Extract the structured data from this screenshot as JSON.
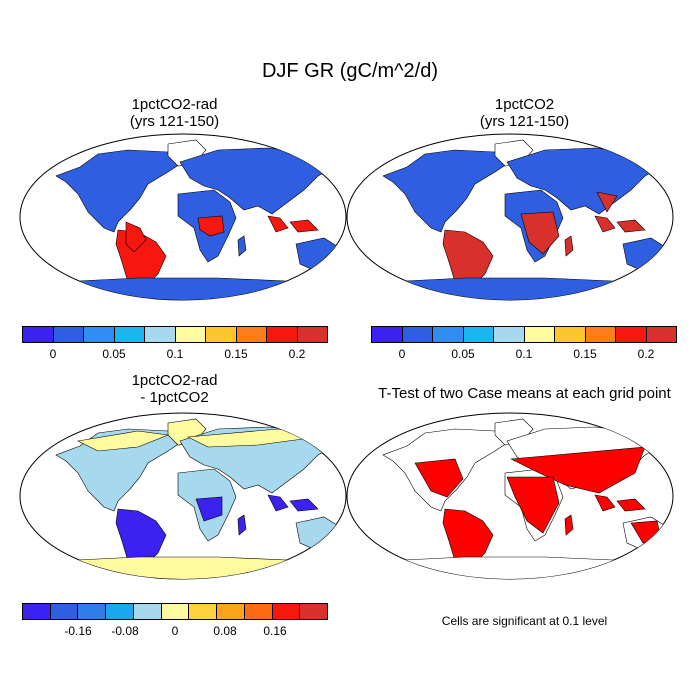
{
  "title": "DJF GR (gC/m^2/d)",
  "panels": {
    "top_left": {
      "title_line1": "1pctCO2-rad",
      "title_line2": "(yrs 121-150)"
    },
    "top_right": {
      "title_line1": "1pctCO2",
      "title_line2": "(yrs 121-150)"
    },
    "bottom_left": {
      "title_line1": "1pctCO2-rad",
      "title_line2": "- 1pctCO2"
    },
    "bottom_right": {
      "title": "T-Test of two Case means at each grid point",
      "footnote": "Cells are significant at 0.1 level"
    }
  },
  "colorbars": {
    "positive": {
      "colors": [
        "#3b22f0",
        "#2f5fe0",
        "#2f8ef0",
        "#1bb6f0",
        "#a6d8ee",
        "#fefaa0",
        "#fdc62a",
        "#fd7e18",
        "#f6170e",
        "#d8302c"
      ],
      "tick_labels": [
        "0",
        "0.05",
        "0.1",
        "0.15",
        "0.2"
      ]
    },
    "difference": {
      "colors": [
        "#3b22f0",
        "#2f5fe0",
        "#2f7de8",
        "#1ba8f0",
        "#a6d8ee",
        "#fefaa0",
        "#fdd23c",
        "#fda31d",
        "#fd6a12",
        "#f6170e",
        "#d8302c"
      ],
      "tick_labels": [
        "-0.16",
        "-0.08",
        "0",
        "0.08",
        "0.16"
      ]
    }
  },
  "map_colors": {
    "ocean": "#ffffff",
    "low_gr": "#2f5fe0",
    "high_gr_rad": "#f6170e",
    "high_gr_full": "#d8302c",
    "diff_neutral": "#a6d8ee",
    "diff_positive": "#fefaa0",
    "diff_negative": "#3b22f0",
    "significant": "#ff0000"
  }
}
